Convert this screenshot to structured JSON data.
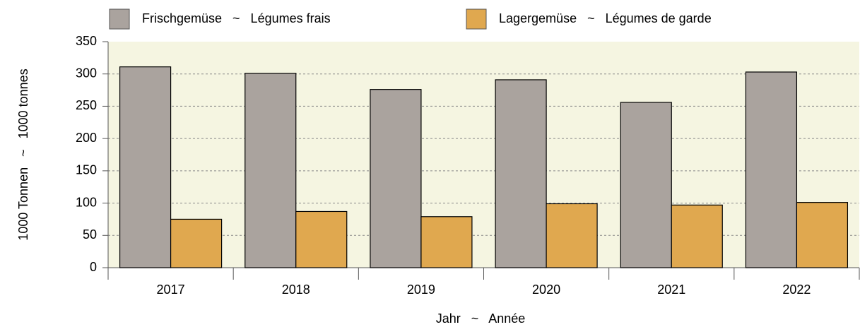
{
  "chart_data": {
    "type": "bar",
    "categories": [
      "2017",
      "2018",
      "2019",
      "2020",
      "2021",
      "2022"
    ],
    "series": [
      {
        "name": "Frischgemüse   ~   Légumes frais",
        "color": "#aaa39e",
        "values": [
          311,
          301,
          276,
          291,
          256,
          303
        ]
      },
      {
        "name": "Lagergemüse   ~   Légumes de garde",
        "color": "#e0a84f",
        "values": [
          75,
          87,
          79,
          99,
          97,
          101
        ]
      }
    ],
    "xlabel": "Jahr   ~   Année",
    "ylabel": "1000 Tonnen   ~   1000 tonnes",
    "ylim": [
      0,
      350
    ],
    "yticks": [
      0,
      50,
      100,
      150,
      200,
      250,
      300,
      350
    ],
    "grid": true,
    "legend": "top"
  }
}
